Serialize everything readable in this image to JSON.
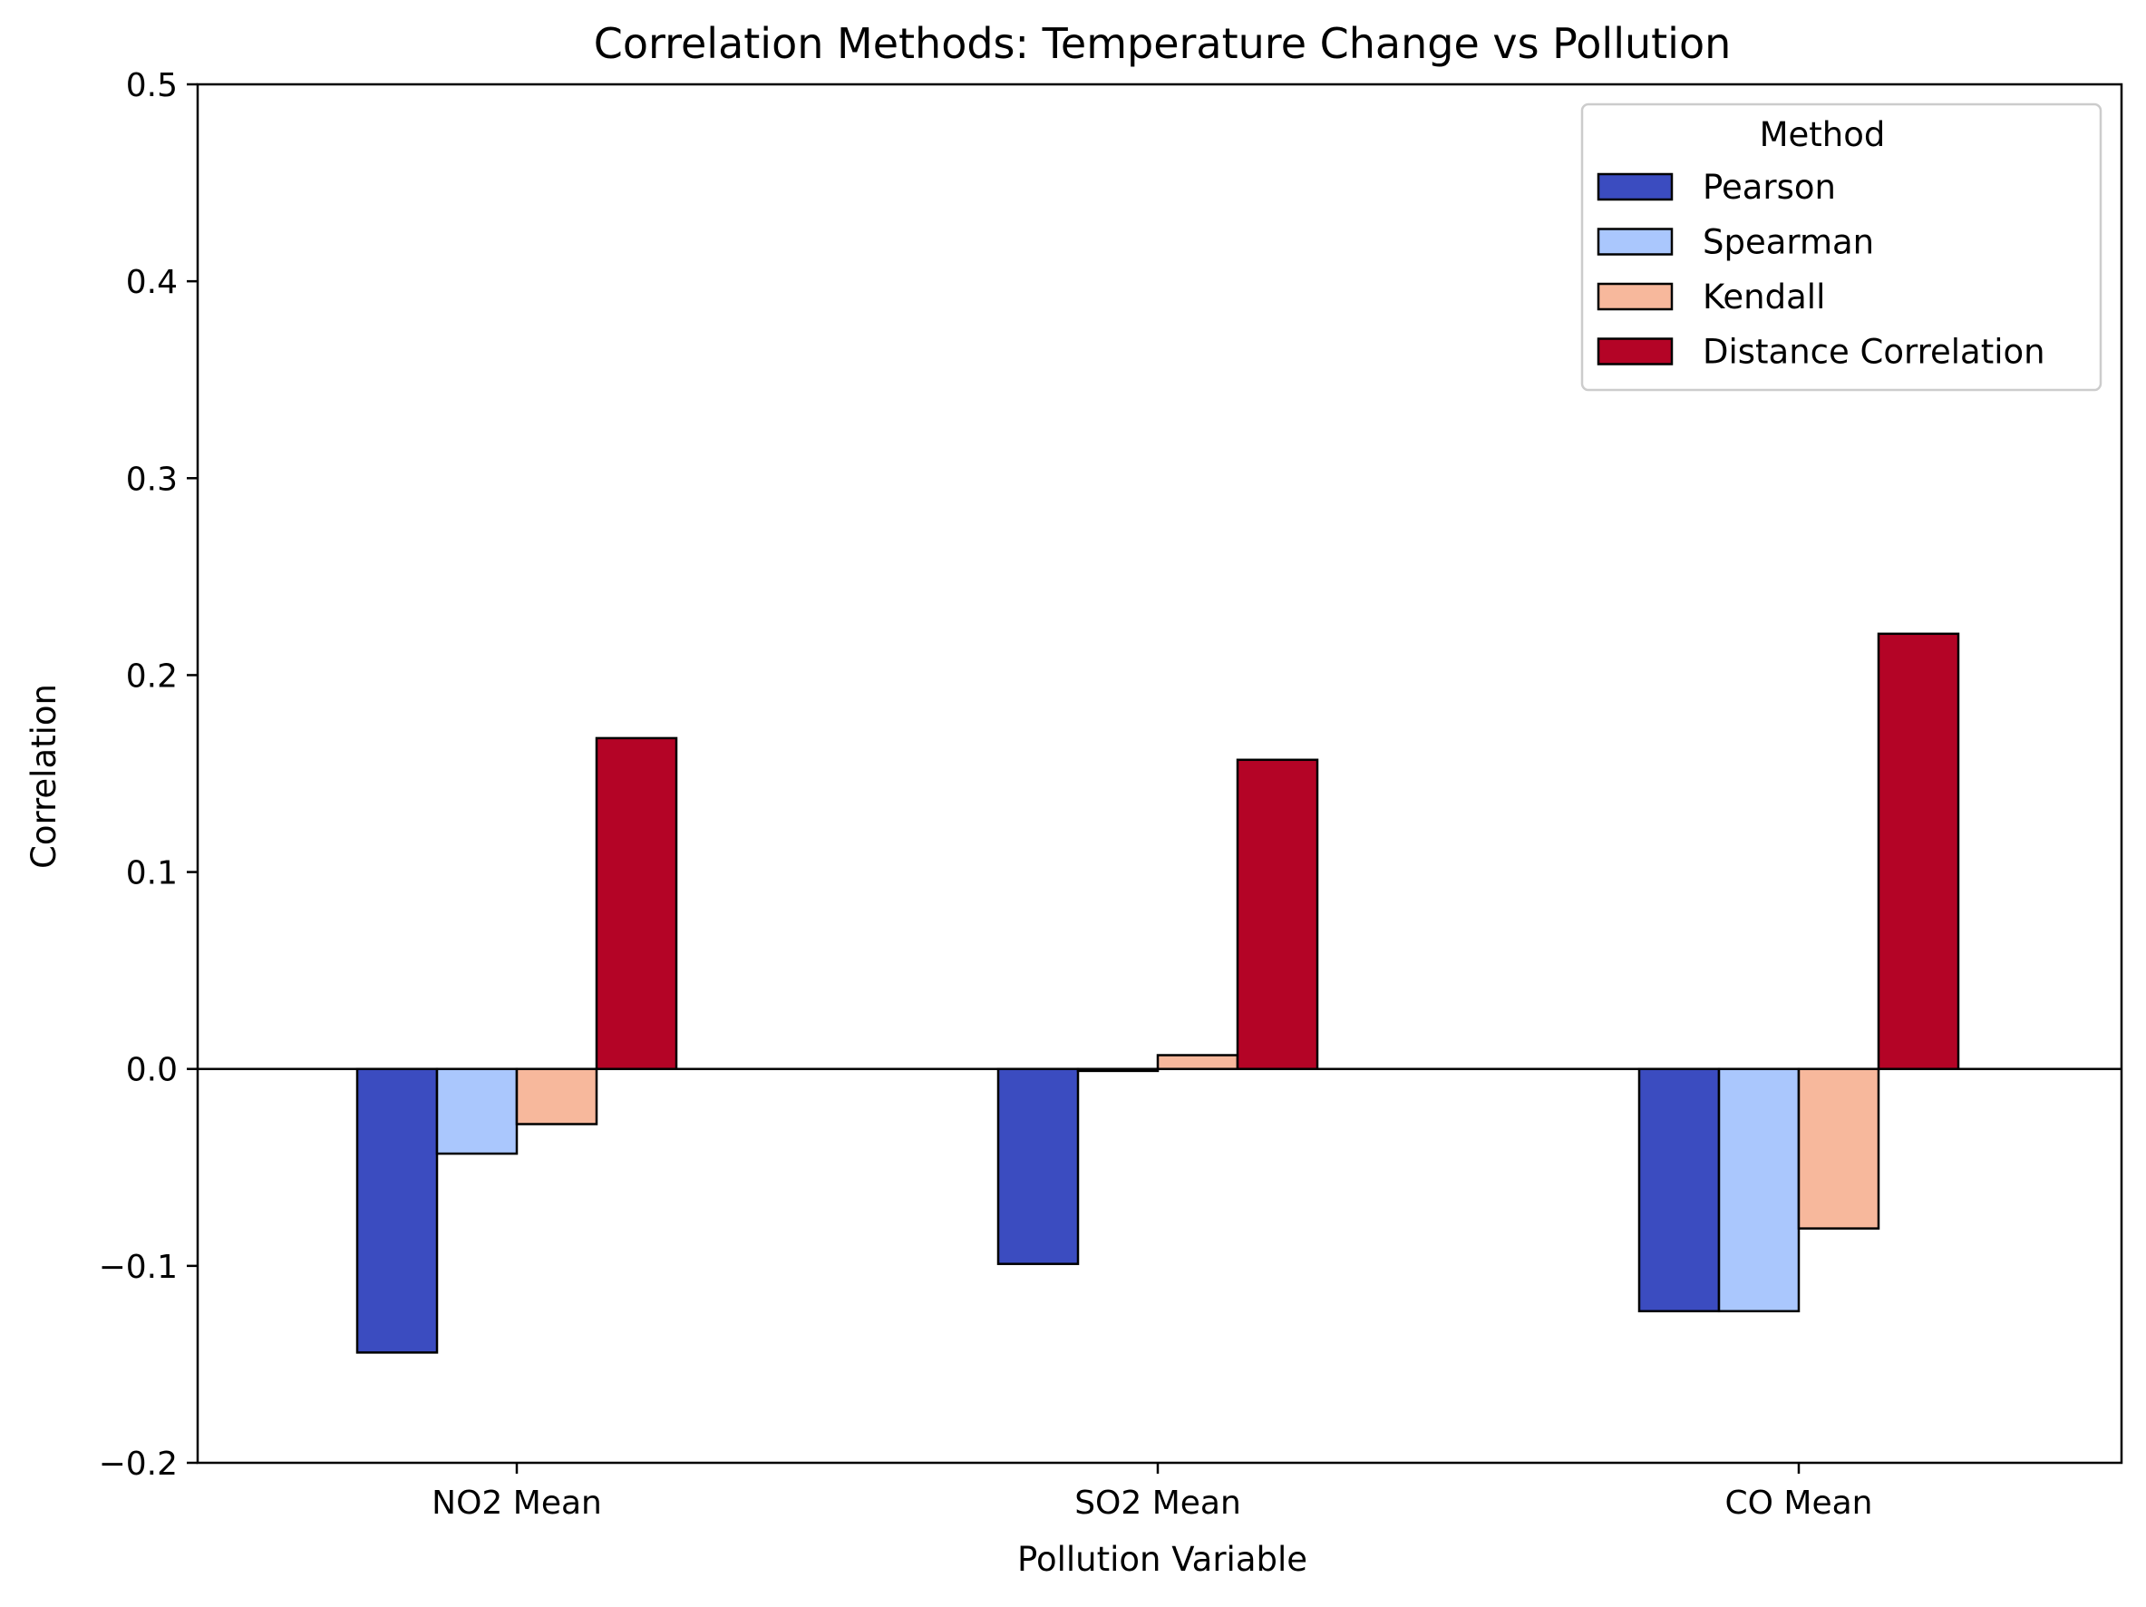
{
  "chart_data": {
    "type": "bar",
    "title": "Correlation Methods: Temperature Change vs Pollution",
    "xlabel": "Pollution Variable",
    "ylabel": "Correlation",
    "categories": [
      "NO2 Mean",
      "SO2 Mean",
      "CO Mean"
    ],
    "ylim": [
      -0.2,
      0.5
    ],
    "yticks": [
      -0.2,
      -0.1,
      0.0,
      0.1,
      0.2,
      0.3,
      0.4,
      0.5
    ],
    "ytick_labels": [
      "−0.2",
      "−0.1",
      "0.0",
      "0.1",
      "0.2",
      "0.3",
      "0.4",
      "0.5"
    ],
    "grid": false,
    "zero_line": true,
    "legend": {
      "title": "Method",
      "placement": "top-right"
    },
    "series": [
      {
        "name": "Pearson",
        "color": "#3b4cc0",
        "values": [
          -0.144,
          -0.099,
          -0.123
        ]
      },
      {
        "name": "Spearman",
        "color": "#aac7fd",
        "values": [
          -0.043,
          -0.001,
          -0.123
        ]
      },
      {
        "name": "Kendall",
        "color": "#f7b89c",
        "values": [
          -0.028,
          0.007,
          -0.081
        ]
      },
      {
        "name": "Distance Correlation",
        "color": "#b40426",
        "values": [
          0.168,
          0.157,
          0.221
        ]
      }
    ]
  }
}
